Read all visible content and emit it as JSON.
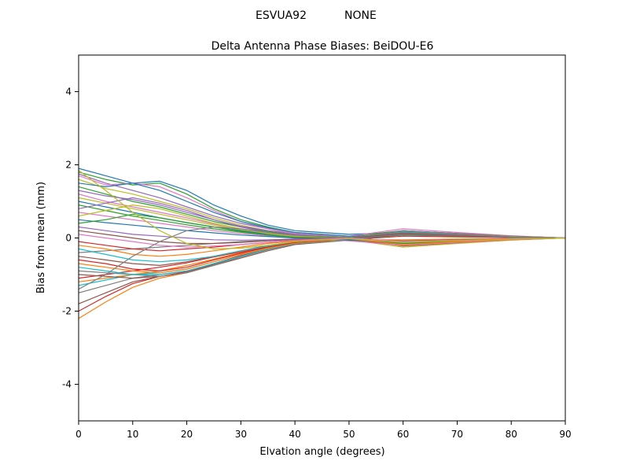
{
  "figure": {
    "suptitle_station": "ESVUA92",
    "suptitle_antenna": "NONE",
    "background_color": "#ffffff",
    "axis_color": "#000000"
  },
  "chart_data": {
    "type": "line",
    "title": "Delta Antenna Phase Biases: BeiDOU-E6",
    "xlabel": "Elvation angle (degrees)",
    "ylabel": "Bias from mean (mm)",
    "xlim": [
      0,
      90
    ],
    "ylim": [
      -5,
      5
    ],
    "xticks": [
      0,
      10,
      20,
      30,
      40,
      50,
      60,
      70,
      80,
      90
    ],
    "yticks": [
      -4,
      -2,
      0,
      2,
      4
    ],
    "grid": false,
    "legend": "none",
    "palette": [
      "#1f77b4",
      "#ff7f0e",
      "#2ca02c",
      "#d62728",
      "#9467bd",
      "#8c564b",
      "#e377c2",
      "#7f7f7f",
      "#bcbd22",
      "#17becf"
    ],
    "x": [
      0,
      5,
      10,
      15,
      20,
      25,
      30,
      35,
      40,
      50,
      60,
      70,
      80,
      90
    ],
    "series": [
      {
        "values": [
          1.9,
          1.7,
          1.5,
          1.55,
          1.3,
          0.9,
          0.6,
          0.35,
          0.2,
          0.1,
          0.15,
          0.1,
          0.05,
          0
        ]
      },
      {
        "values": [
          -2.2,
          -1.75,
          -1.35,
          -1.1,
          -0.95,
          -0.72,
          -0.5,
          -0.3,
          -0.15,
          -0.05,
          -0.05,
          -0.03,
          -0.01,
          0
        ]
      },
      {
        "values": [
          1.8,
          1.6,
          1.45,
          1.5,
          1.2,
          0.8,
          0.5,
          0.3,
          0.15,
          0.05,
          0.2,
          0.12,
          0.05,
          0
        ]
      },
      {
        "values": [
          -2.0,
          -1.6,
          -1.25,
          -1.05,
          -0.92,
          -0.7,
          -0.48,
          -0.3,
          -0.15,
          -0.05,
          0.05,
          0.03,
          0.01,
          0
        ]
      },
      {
        "values": [
          1.75,
          1.5,
          1.3,
          1.1,
          0.85,
          0.6,
          0.4,
          0.25,
          0.1,
          0,
          -0.1,
          -0.08,
          -0.03,
          0
        ]
      },
      {
        "values": [
          -1.8,
          -1.5,
          -1.2,
          -1.05,
          -0.95,
          -0.72,
          -0.5,
          -0.3,
          -0.15,
          -0.05,
          -0.08,
          -0.05,
          -0.02,
          0
        ]
      },
      {
        "values": [
          1.7,
          1.45,
          1.5,
          1.4,
          1.1,
          0.75,
          0.45,
          0.25,
          0.12,
          0.05,
          0.25,
          0.15,
          0.06,
          0
        ]
      },
      {
        "values": [
          -1.5,
          -1.3,
          -1.1,
          -1.0,
          -0.9,
          -0.7,
          -0.5,
          -0.3,
          -0.15,
          -0.05,
          0.08,
          0.05,
          0.02,
          0
        ]
      },
      {
        "values": [
          1.6,
          1.35,
          1.2,
          1.0,
          0.8,
          0.55,
          0.35,
          0.2,
          0.1,
          0,
          -0.15,
          -0.1,
          -0.04,
          0
        ]
      },
      {
        "values": [
          -1.3,
          -1.15,
          -1.0,
          -0.95,
          -0.85,
          -0.65,
          -0.45,
          -0.28,
          -0.14,
          -0.04,
          -0.1,
          -0.06,
          -0.02,
          0
        ]
      },
      {
        "values": [
          1.5,
          1.4,
          1.5,
          1.3,
          1.0,
          0.7,
          0.45,
          0.28,
          0.15,
          0.05,
          0.1,
          0.06,
          0.02,
          0
        ]
      },
      {
        "values": [
          -1.2,
          -1.1,
          -1.0,
          -0.9,
          -0.75,
          -0.58,
          -0.4,
          -0.26,
          -0.13,
          -0.04,
          0.15,
          0.09,
          0.04,
          0
        ]
      },
      {
        "values": [
          1.4,
          1.2,
          1.0,
          0.85,
          0.65,
          0.45,
          0.3,
          0.18,
          0.08,
          0,
          0.18,
          0.1,
          0.04,
          0
        ]
      },
      {
        "values": [
          -1.1,
          -1.0,
          -0.9,
          -0.8,
          -0.68,
          -0.52,
          -0.38,
          -0.24,
          -0.12,
          -0.03,
          -0.12,
          -0.07,
          -0.03,
          0
        ]
      },
      {
        "values": [
          1.3,
          1.15,
          1.05,
          0.9,
          0.7,
          0.5,
          0.32,
          0.2,
          0.1,
          0.02,
          -0.2,
          -0.12,
          -0.05,
          0
        ]
      },
      {
        "values": [
          -1.0,
          -1.05,
          -1.1,
          -1.05,
          -0.95,
          -0.75,
          -0.55,
          -0.35,
          -0.18,
          -0.06,
          0.1,
          0.06,
          0.02,
          0
        ]
      },
      {
        "values": [
          1.2,
          1.0,
          0.85,
          0.7,
          0.55,
          0.38,
          0.25,
          0.14,
          0.06,
          0,
          0.12,
          0.07,
          0.03,
          0
        ]
      },
      {
        "values": [
          -0.9,
          -0.95,
          -1.0,
          -1.05,
          -0.95,
          -0.75,
          -0.52,
          -0.32,
          -0.16,
          -0.05,
          -0.2,
          -0.12,
          -0.05,
          0
        ]
      },
      {
        "values": [
          1.1,
          0.95,
          0.8,
          0.65,
          0.5,
          0.35,
          0.22,
          0.12,
          0.05,
          -0.05,
          -0.25,
          -0.15,
          -0.06,
          0
        ]
      },
      {
        "values": [
          -0.8,
          -0.9,
          -1.0,
          -1.0,
          -0.9,
          -0.7,
          -0.5,
          -0.3,
          -0.15,
          -0.05,
          0.18,
          0.11,
          0.04,
          0
        ]
      },
      {
        "values": [
          1.0,
          0.85,
          0.7,
          0.55,
          0.42,
          0.3,
          0.2,
          0.1,
          0.04,
          0,
          0.2,
          0.12,
          0.05,
          0
        ]
      },
      {
        "values": [
          -0.7,
          -0.8,
          -0.9,
          -0.95,
          -0.85,
          -0.65,
          -0.45,
          -0.28,
          -0.14,
          -0.04,
          -0.15,
          -0.09,
          -0.04,
          0
        ]
      },
      {
        "values": [
          0.9,
          0.75,
          0.6,
          0.48,
          0.36,
          0.25,
          0.16,
          0.08,
          0.02,
          -0.05,
          -0.15,
          -0.09,
          -0.03,
          0
        ]
      },
      {
        "values": [
          -0.6,
          -0.7,
          -0.85,
          -0.9,
          -0.8,
          -0.6,
          -0.42,
          -0.25,
          -0.12,
          -0.03,
          0.12,
          0.07,
          0.03,
          0
        ]
      },
      {
        "values": [
          0.8,
          0.95,
          1.1,
          0.95,
          0.75,
          0.5,
          0.3,
          0.15,
          0.05,
          0,
          0.1,
          0.06,
          0.02,
          0
        ]
      },
      {
        "values": [
          -0.5,
          -0.6,
          -0.7,
          -0.75,
          -0.65,
          -0.5,
          -0.35,
          -0.2,
          -0.1,
          -0.02,
          -0.22,
          -0.13,
          -0.05,
          0
        ]
      },
      {
        "values": [
          0.7,
          0.6,
          0.5,
          0.4,
          0.3,
          0.2,
          0.12,
          0.06,
          0,
          -0.08,
          -0.2,
          -0.12,
          -0.05,
          0
        ]
      },
      {
        "values": [
          -0.4,
          -0.35,
          -0.3,
          -0.25,
          -0.2,
          -0.15,
          -0.1,
          -0.06,
          -0.03,
          0,
          0.2,
          0.12,
          0.05,
          0
        ]
      },
      {
        "values": [
          0.6,
          0.75,
          0.9,
          0.8,
          0.6,
          0.4,
          0.25,
          0.12,
          0.04,
          0,
          0.15,
          0.09,
          0.04,
          0
        ]
      },
      {
        "values": [
          -0.3,
          -0.45,
          -0.6,
          -0.65,
          -0.6,
          -0.5,
          -0.35,
          -0.22,
          -0.1,
          -0.02,
          0.1,
          0.06,
          0.02,
          0
        ]
      },
      {
        "values": [
          0.5,
          0.42,
          0.35,
          0.28,
          0.2,
          0.14,
          0.08,
          0.04,
          0,
          -0.06,
          -0.12,
          -0.07,
          -0.03,
          0
        ]
      },
      {
        "values": [
          -0.2,
          -0.3,
          -0.45,
          -0.5,
          -0.45,
          -0.35,
          -0.25,
          -0.15,
          -0.08,
          -0.02,
          -0.18,
          -0.1,
          -0.04,
          0
        ]
      },
      {
        "values": [
          0.4,
          0.5,
          0.65,
          0.55,
          0.42,
          0.3,
          0.18,
          0.08,
          0.02,
          0,
          0.08,
          0.05,
          0.02,
          0
        ]
      },
      {
        "values": [
          -0.1,
          -0.2,
          -0.3,
          -0.35,
          -0.3,
          -0.25,
          -0.18,
          -0.12,
          -0.06,
          0,
          0.15,
          0.09,
          0.03,
          0
        ]
      },
      {
        "values": [
          0.3,
          0.2,
          0.1,
          0.05,
          0,
          -0.05,
          -0.06,
          -0.05,
          -0.03,
          0,
          0.1,
          0.06,
          0.02,
          0
        ]
      },
      {
        "values": [
          0.2,
          0.1,
          0,
          -0.1,
          -0.15,
          -0.15,
          -0.12,
          -0.08,
          -0.04,
          0,
          0.12,
          0.07,
          0.03,
          0
        ]
      },
      {
        "values": [
          0.1,
          0,
          -0.1,
          -0.2,
          -0.25,
          -0.22,
          -0.18,
          -0.12,
          -0.06,
          0,
          -0.1,
          -0.06,
          -0.02,
          0
        ]
      },
      {
        "values": [
          -1.4,
          -1.0,
          -0.5,
          -0.1,
          0.2,
          0.3,
          0.25,
          0.15,
          0.08,
          0.02,
          0.15,
          0.09,
          0.03,
          0
        ]
      },
      {
        "values": [
          1.85,
          1.3,
          0.7,
          0.2,
          -0.15,
          -0.3,
          -0.28,
          -0.2,
          -0.1,
          -0.02,
          -0.12,
          -0.07,
          -0.03,
          0
        ]
      }
    ]
  }
}
